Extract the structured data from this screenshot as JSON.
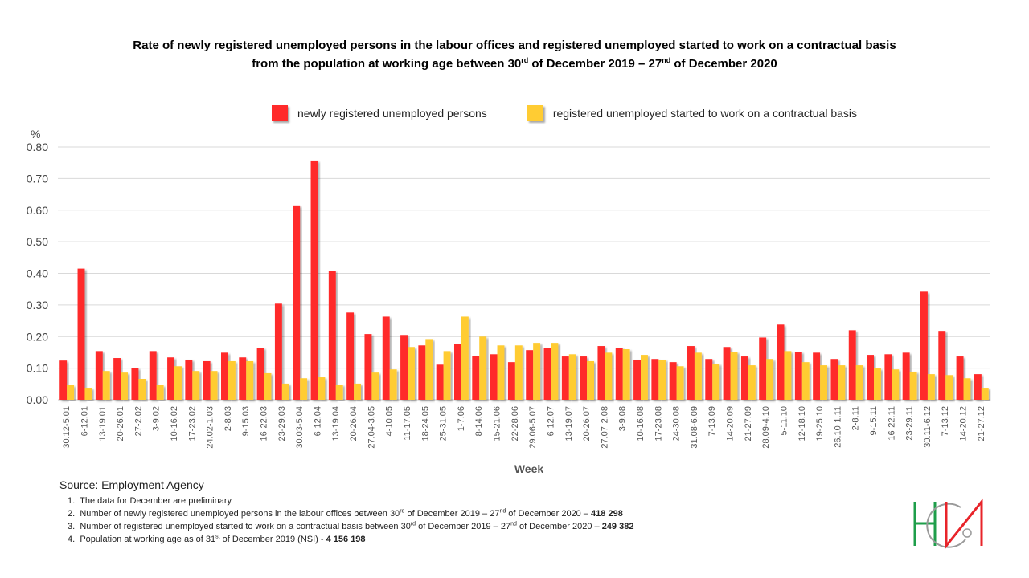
{
  "title": {
    "line1": "Rate of newly registered unemployed persons in the labour offices and registered unemployed started to work on a contractual basis",
    "line2_pre": "from the population at working age between 30",
    "line2_sup1": "rd",
    "line2_mid": " of December 2019 – 27",
    "line2_sup2": "nd",
    "line2_post": " of December 2020"
  },
  "legend": {
    "items": [
      {
        "label": "newly registered unemployed  persons",
        "color": "#ff2a2a"
      },
      {
        "label": "registered unemployed  started to work  on  a contractual basis",
        "color": "#ffcc33"
      }
    ]
  },
  "source": "Source:  Employment  Agency",
  "notes": [
    {
      "num": "1.",
      "text": "The data for December  are preliminary"
    },
    {
      "num": "2.",
      "pre": "Number  of newly registered unemployed persons in the  labour offices between  30",
      "sup1": "rd",
      "mid": " of December  2019 – 27",
      "sup2": "nd",
      "post": " of December  2020 – ",
      "bold": "418 298"
    },
    {
      "num": "3.",
      "pre": "Number  of registered unemployed  started to work on a contractual basis between  30",
      "sup1": "rd",
      "mid": " of December  2019 – 27",
      "sup2": "nd",
      "post": " of December  2020 – ",
      "bold": "249 382"
    },
    {
      "num": "4.",
      "pre": "Population at working age as of 31",
      "sup1": "st",
      "mid": " of December  2019 (NSI)  - ",
      "bold": "4 156 198"
    }
  ],
  "logo": {
    "name": "NSI logo",
    "colors": {
      "green": "#1e9e4a",
      "red": "#e8242a",
      "grey": "#9a9a9a"
    }
  },
  "chart_data": {
    "type": "bar",
    "title": "Rate of newly registered unemployed persons in the labour offices and registered unemployed started to work on a contractual basis from the population at working age between 30rd of December 2019 – 27nd of December 2020",
    "xlabel": "Week",
    "ylabel": "%",
    "ylim": [
      0,
      0.8
    ],
    "yticks": [
      "0.00",
      "0.10",
      "0.20",
      "0.30",
      "0.40",
      "0.50",
      "0.60",
      "0.70",
      "0.80"
    ],
    "grid": true,
    "legend_position": "top",
    "categories": [
      "30.12-5.01",
      "6-12.01",
      "13-19.01",
      "20-26.01",
      "27-2.02",
      "3-9.02",
      "10-16.02",
      "17-23.02",
      "24.02-1.03",
      "2-8.03",
      "9-15.03",
      "16-22.03",
      "23-29.03",
      "30.03-5.04",
      "6-12.04",
      "13-19.04",
      "20-26.04",
      "27.04-3.05",
      "4-10.05",
      "11-17.05",
      "18-24.05",
      "25-31.05",
      "1-7.06",
      "8-14.06",
      "15-21.06",
      "22-28.06",
      "29.06-5.07",
      "6-12.07",
      "13-19.07",
      "20-26.07",
      "27.07-2.08",
      "3-9.08",
      "10-16.08",
      "17-23.08",
      "24-30.08",
      "31.08-6.09",
      "7-13.09",
      "14-20.09",
      "21-27.09",
      "28.09-4.10",
      "5-11.10",
      "12-18.10",
      "19-25.10",
      "26.10-1.11",
      "2-8.11",
      "9-15.11",
      "16-22.11",
      "23-29.11",
      "30.11-6.12",
      "7-13.12",
      "14-20.12",
      "21-27.12"
    ],
    "series": [
      {
        "name": "newly registered unemployed persons",
        "color": "#ff2a2a",
        "values": [
          0.124,
          0.415,
          0.154,
          0.132,
          0.101,
          0.154,
          0.134,
          0.127,
          0.122,
          0.149,
          0.134,
          0.165,
          0.304,
          0.615,
          0.757,
          0.408,
          0.276,
          0.208,
          0.263,
          0.205,
          0.172,
          0.111,
          0.177,
          0.139,
          0.144,
          0.119,
          0.157,
          0.165,
          0.137,
          0.137,
          0.17,
          0.165,
          0.127,
          0.129,
          0.119,
          0.17,
          0.129,
          0.167,
          0.137,
          0.197,
          0.238,
          0.152,
          0.149,
          0.129,
          0.22,
          0.142,
          0.144,
          0.149,
          0.342,
          0.218,
          0.137,
          0.081
        ]
      },
      {
        "name": "registered unemployed started to work on a contractual basis",
        "color": "#ffcc33",
        "values": [
          0.046,
          0.038,
          0.091,
          0.086,
          0.066,
          0.046,
          0.106,
          0.091,
          0.091,
          0.122,
          0.122,
          0.084,
          0.051,
          0.068,
          0.071,
          0.048,
          0.051,
          0.086,
          0.096,
          0.167,
          0.192,
          0.154,
          0.263,
          0.2,
          0.172,
          0.172,
          0.18,
          0.18,
          0.144,
          0.122,
          0.149,
          0.16,
          0.142,
          0.127,
          0.106,
          0.149,
          0.114,
          0.152,
          0.109,
          0.129,
          0.154,
          0.119,
          0.109,
          0.109,
          0.109,
          0.099,
          0.096,
          0.089,
          0.081,
          0.078,
          0.068,
          0.038
        ]
      }
    ]
  }
}
